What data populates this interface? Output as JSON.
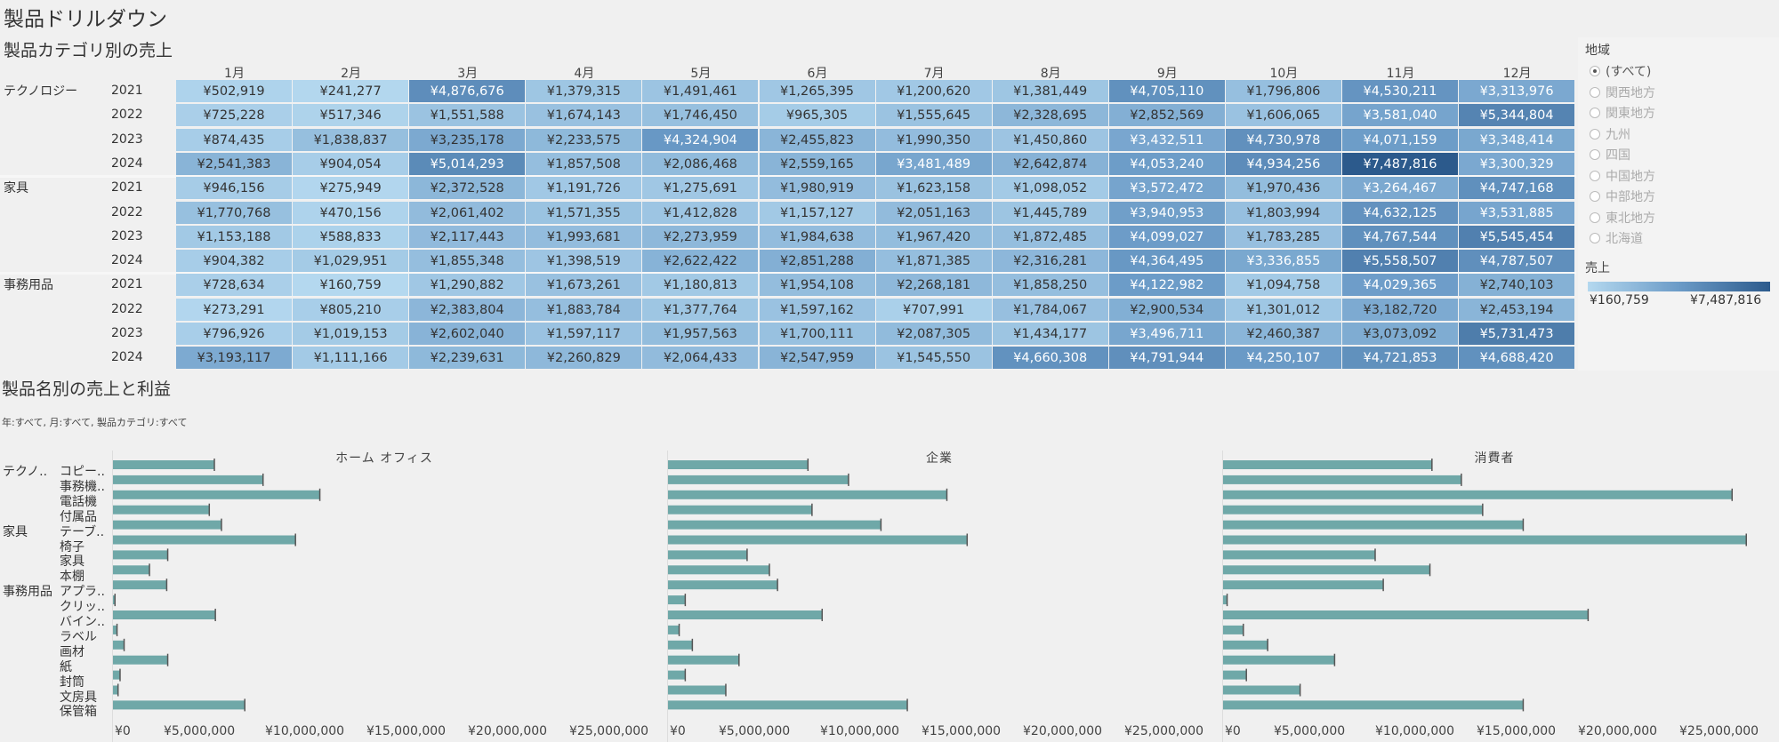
{
  "dashboard_title": "製品ドリルダウン",
  "heatmap": {
    "title": "製品カテゴリ別の売上",
    "months": [
      "1月",
      "2月",
      "3月",
      "4月",
      "5月",
      "6月",
      "7月",
      "8月",
      "9月",
      "10月",
      "11月",
      "12月"
    ],
    "categories": [
      {
        "name": "テクノロジー",
        "rows": [
          {
            "year": "2021",
            "cells": [
              "¥502,919",
              "¥241,277",
              "¥4,876,676",
              "¥1,379,315",
              "¥1,491,461",
              "¥1,265,395",
              "¥1,200,620",
              "¥1,381,449",
              "¥4,705,110",
              "¥1,796,806",
              "¥4,530,211",
              "¥3,313,976"
            ]
          },
          {
            "year": "2022",
            "cells": [
              "¥725,228",
              "¥517,346",
              "¥1,551,588",
              "¥1,674,143",
              "¥1,746,450",
              "¥965,305",
              "¥1,555,645",
              "¥2,328,695",
              "¥2,852,569",
              "¥1,606,065",
              "¥3,581,040",
              "¥5,344,804"
            ]
          },
          {
            "year": "2023",
            "cells": [
              "¥874,435",
              "¥1,838,837",
              "¥3,235,178",
              "¥2,233,575",
              "¥4,324,904",
              "¥2,455,823",
              "¥1,990,350",
              "¥1,450,860",
              "¥3,432,511",
              "¥4,730,978",
              "¥4,071,159",
              "¥3,348,414"
            ]
          },
          {
            "year": "2024",
            "cells": [
              "¥2,541,383",
              "¥904,054",
              "¥5,014,293",
              "¥1,857,508",
              "¥2,086,468",
              "¥2,559,165",
              "¥3,481,489",
              "¥2,642,874",
              "¥4,053,240",
              "¥4,934,256",
              "¥7,487,816",
              "¥3,300,329"
            ]
          }
        ]
      },
      {
        "name": "家具",
        "rows": [
          {
            "year": "2021",
            "cells": [
              "¥946,156",
              "¥275,949",
              "¥2,372,528",
              "¥1,191,726",
              "¥1,275,691",
              "¥1,980,919",
              "¥1,623,158",
              "¥1,098,052",
              "¥3,572,472",
              "¥1,970,436",
              "¥3,264,467",
              "¥4,747,168"
            ]
          },
          {
            "year": "2022",
            "cells": [
              "¥1,770,768",
              "¥470,156",
              "¥2,061,402",
              "¥1,571,355",
              "¥1,412,828",
              "¥1,157,127",
              "¥2,051,163",
              "¥1,445,789",
              "¥3,940,953",
              "¥1,803,994",
              "¥4,632,125",
              "¥3,531,885"
            ]
          },
          {
            "year": "2023",
            "cells": [
              "¥1,153,188",
              "¥588,833",
              "¥2,117,443",
              "¥1,993,681",
              "¥2,273,959",
              "¥1,984,638",
              "¥1,967,420",
              "¥1,872,485",
              "¥4,099,027",
              "¥1,783,285",
              "¥4,767,544",
              "¥5,545,454"
            ]
          },
          {
            "year": "2024",
            "cells": [
              "¥904,382",
              "¥1,029,951",
              "¥1,855,348",
              "¥1,398,519",
              "¥2,622,422",
              "¥2,851,288",
              "¥1,871,385",
              "¥2,316,281",
              "¥4,364,495",
              "¥3,336,855",
              "¥5,558,507",
              "¥4,787,507"
            ]
          }
        ]
      },
      {
        "name": "事務用品",
        "rows": [
          {
            "year": "2021",
            "cells": [
              "¥728,634",
              "¥160,759",
              "¥1,290,882",
              "¥1,673,261",
              "¥1,180,813",
              "¥1,954,108",
              "¥2,268,181",
              "¥1,858,250",
              "¥4,122,982",
              "¥1,094,758",
              "¥4,029,365",
              "¥2,740,103"
            ]
          },
          {
            "year": "2022",
            "cells": [
              "¥273,291",
              "¥805,210",
              "¥2,383,804",
              "¥1,883,784",
              "¥1,377,764",
              "¥1,597,162",
              "¥707,991",
              "¥1,784,067",
              "¥2,900,534",
              "¥1,301,012",
              "¥3,182,720",
              "¥2,453,194"
            ]
          },
          {
            "year": "2023",
            "cells": [
              "¥796,926",
              "¥1,019,153",
              "¥2,602,040",
              "¥1,597,117",
              "¥1,957,563",
              "¥1,700,111",
              "¥2,087,305",
              "¥1,434,177",
              "¥3,496,711",
              "¥2,460,387",
              "¥3,073,092",
              "¥5,731,473"
            ]
          },
          {
            "year": "2024",
            "cells": [
              "¥3,193,117",
              "¥1,111,166",
              "¥2,239,631",
              "¥2,260,829",
              "¥2,064,433",
              "¥2,547,959",
              "¥1,545,550",
              "¥4,660,308",
              "¥4,791,944",
              "¥4,250,107",
              "¥4,721,853",
              "¥4,688,420"
            ]
          }
        ]
      }
    ]
  },
  "region_filter": {
    "title": "地域",
    "options": [
      "(すべて)",
      "関西地方",
      "関東地方",
      "九州",
      "四国",
      "中国地方",
      "中部地方",
      "東北地方",
      "北海道"
    ],
    "selected": "(すべて)"
  },
  "color_legend": {
    "title": "売上",
    "min_label": "¥160,759",
    "max_label": "¥7,487,816",
    "min_color": "#b4d8ef",
    "mid_color": "#6b9bc7",
    "max_color": "#2c5a8c"
  },
  "bar_section": {
    "title": "製品名別の売上と利益",
    "subtitle": "年:すべて, 月:すべて, 製品カテゴリ:すべて"
  },
  "chart_data": {
    "type": "bar",
    "orientation": "horizontal",
    "title": "製品名別の売上と利益",
    "bar_color": "#6fa8a8",
    "row_groups": [
      {
        "name": "テクノ..",
        "products": [
          "コピー..",
          "事務機..",
          "電話機",
          "付属品"
        ]
      },
      {
        "name": "家具",
        "products": [
          "テーブ..",
          "椅子",
          "家具",
          "本棚"
        ]
      },
      {
        "name": "事務用品",
        "products": [
          "アプラ..",
          "クリッ..",
          "バイン..",
          "ラベル",
          "画材",
          "紙",
          "封筒",
          "文房具",
          "保管箱"
        ]
      }
    ],
    "categories": [
      "コピー..",
      "事務機..",
      "電話機",
      "付属品",
      "テーブ..",
      "椅子",
      "家具",
      "本棚",
      "アプラ..",
      "クリッ..",
      "バイン..",
      "ラベル",
      "画材",
      "紙",
      "封筒",
      "文房具",
      "保管箱"
    ],
    "series": [
      {
        "name": "ホーム オフィス",
        "values": [
          5000000,
          7400000,
          10200000,
          4750000,
          5350000,
          9000000,
          2700000,
          1800000,
          2650000,
          100000,
          5050000,
          200000,
          550000,
          2700000,
          350000,
          250000,
          6500000
        ]
      },
      {
        "name": "企業",
        "values": [
          6900000,
          8900000,
          13750000,
          7100000,
          10500000,
          14750000,
          3900000,
          5000000,
          5400000,
          850000,
          7600000,
          550000,
          1200000,
          3500000,
          850000,
          2850000,
          11800000
        ]
      },
      {
        "name": "消費者",
        "values": [
          10300000,
          11750000,
          25100000,
          12800000,
          14800000,
          25800000,
          7500000,
          10200000,
          7900000,
          200000,
          18000000,
          1000000,
          2200000,
          5500000,
          1150000,
          3800000,
          14800000
        ]
      }
    ],
    "xlim": [
      0,
      27000000
    ],
    "xticks": [
      0,
      5000000,
      10000000,
      15000000,
      20000000,
      25000000
    ],
    "xtick_labels": [
      "¥0",
      "¥5,000,000",
      "¥10,000,000",
      "¥15,000,000",
      "¥20,000,000",
      "¥25,000,000"
    ]
  }
}
